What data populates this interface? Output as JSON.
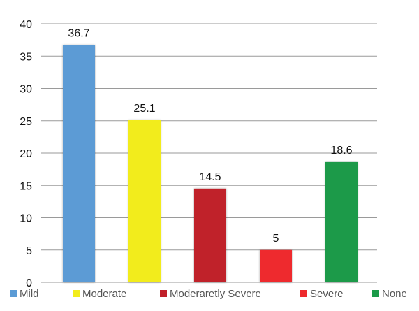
{
  "chart_data": {
    "type": "bar",
    "categories": [
      "Mild",
      "Moderate",
      "Moderaretly Severe",
      "Severe",
      "None"
    ],
    "values": [
      36.7,
      25.1,
      14.5,
      5,
      18.6
    ],
    "value_labels": [
      "36.7",
      "25.1",
      "14.5",
      "5",
      "18.6"
    ],
    "colors": [
      "#5b9bd5",
      "#f2ec1c",
      "#c0202a",
      "#ee2a2d",
      "#1a9a48"
    ],
    "ylim": [
      0,
      40
    ],
    "yticks": [
      0,
      5,
      10,
      15,
      20,
      25,
      30,
      35,
      40
    ],
    "grid": true,
    "legend_position": "bottom",
    "title": "",
    "xlabel": "",
    "ylabel": ""
  }
}
